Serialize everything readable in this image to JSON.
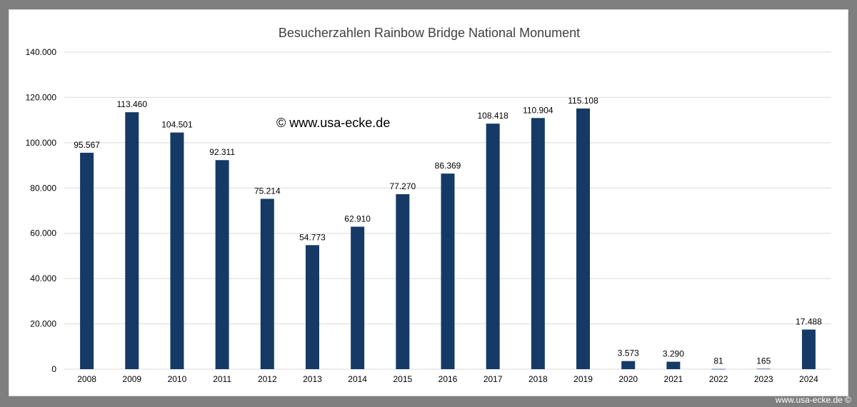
{
  "watermark": "© www.usa-ecke.de",
  "footer": "www.usa-ecke.de ©",
  "colors": {
    "bar": "#163a66",
    "grid": "#d9d9d9",
    "frame": "#7f7f7f"
  },
  "chart_data": {
    "type": "bar",
    "title": "Besucherzahlen Rainbow Bridge National Monument",
    "xlabel": "",
    "ylabel": "",
    "ylim": [
      0,
      140000
    ],
    "yticks": [
      0,
      20000,
      40000,
      60000,
      80000,
      100000,
      120000,
      140000
    ],
    "ytick_labels": [
      "0",
      "20.000",
      "40.000",
      "60.000",
      "80.000",
      "100.000",
      "120.000",
      "140.000"
    ],
    "grid": true,
    "categories": [
      "2008",
      "2009",
      "2010",
      "2011",
      "2012",
      "2013",
      "2014",
      "2015",
      "2016",
      "2017",
      "2018",
      "2019",
      "2020",
      "2021",
      "2022",
      "2023",
      "2024"
    ],
    "values": [
      95567,
      113460,
      104501,
      92311,
      75214,
      54773,
      62910,
      77270,
      86369,
      108418,
      110904,
      115108,
      3573,
      3290,
      81,
      165,
      17488
    ],
    "value_labels": [
      "95.567",
      "113.460",
      "104.501",
      "92.311",
      "75.214",
      "54.773",
      "62.910",
      "77.270",
      "86.369",
      "108.418",
      "110.904",
      "115.108",
      "3.573",
      "3.290",
      "81",
      "165",
      "17.488"
    ]
  }
}
